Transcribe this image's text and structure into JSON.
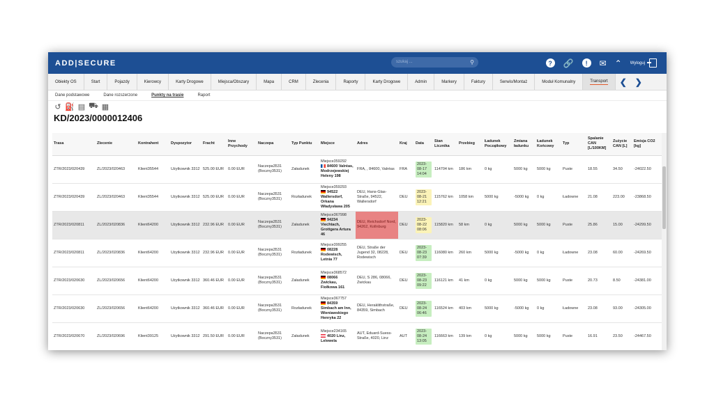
{
  "app": {
    "logo": "ADD|SECURE"
  },
  "search": {
    "placeholder": "szukaj ..."
  },
  "top": {
    "logout_label": "Wyloguj"
  },
  "menu": [
    {
      "label": "Obiekty OS"
    },
    {
      "label": "Start"
    },
    {
      "label": "Pojazdy"
    },
    {
      "label": "Kierowcy"
    },
    {
      "label": "Karty Drogowe"
    },
    {
      "label": "Miejsca/Obszary"
    },
    {
      "label": "Mapa"
    },
    {
      "label": "CRM"
    },
    {
      "label": "Zlecenia"
    },
    {
      "label": "Raporty"
    },
    {
      "label": "Karty Drogowe"
    },
    {
      "label": "Admin"
    },
    {
      "label": "Markery"
    },
    {
      "label": "Faktury"
    },
    {
      "label": "Serwis/Montaż"
    },
    {
      "label": "Moduł Komunalny"
    },
    {
      "label": "Transport"
    }
  ],
  "subtabs": [
    {
      "label": "Dane podstawowe"
    },
    {
      "label": "Dane rozszerzone"
    },
    {
      "label": "Punkty na trasie"
    },
    {
      "label": "Raport"
    }
  ],
  "page": {
    "title": "KD/2023/0000012406"
  },
  "table": {
    "headers": [
      "Trasa",
      "Zlecenie",
      "Kontrahent",
      "Dyspozytor",
      "Fracht",
      "Inne Przychody",
      "Naczepa",
      "Typ Punktu",
      "Miejsce",
      "Adres",
      "Kraj",
      "Data",
      "Stan Licznika",
      "Przebieg",
      "Ładunek Początkowy",
      "Zmiana ładunku",
      "Ładunek Końcowy",
      "Typ",
      "Spalanie CAN [L/100KM]",
      "Zużycie CAN [L]",
      "Emisja CO2 [kg]"
    ],
    "rows": [
      {
        "trasa": "ZTR/2023/020439",
        "zlecenie": "ZL/2023/020463",
        "kontrahent": "Klient35544",
        "dyspozytor": "Użytkownik 3312",
        "fracht": "525.00 EUR",
        "inne": "0.00 EUR",
        "naczepa": "Naczepa3531 (Boczny3531)",
        "typ_punktu": "Załadunek",
        "miejsce_id": "Miejsce359292",
        "miejsce_name": "84600 Valréas, Modrzejewskiej Heleny 198",
        "adres": "FRA, , 84600, Valréas",
        "kraj": "FRA",
        "data": "2023-08-17 14:04",
        "licznik": "114704 km",
        "przebieg": "186 km",
        "lad_pocz": "0 kg",
        "zmiana": "5000 kg",
        "lad_konc": "5000 kg",
        "typ": "Puste",
        "spalanie": "18.55",
        "zuzycie": "34.50",
        "emisja": "-24022.50"
      },
      {
        "trasa": "ZTR/2023/020439",
        "zlecenie": "ZL/2023/020463",
        "kontrahent": "Klient35544",
        "dyspozytor": "Użytkownik 3312",
        "fracht": "525.00 EUR",
        "inne": "0.00 EUR",
        "naczepa": "Naczepa3531 (Boczny3531)",
        "typ_punktu": "Rozładunek",
        "miejsce_id": "Miejsce359293",
        "miejsce_name": "94522 Wallersdorf, Orkana Władysława 205",
        "adres": "DEU, Hans-Glas-Straße, 94522, Wallersdorf",
        "kraj": "DEU",
        "data": "2023-08-21 12:21",
        "licznik": "115762 km",
        "przebieg": "1058 km",
        "lad_pocz": "5000 kg",
        "zmiana": "-5000 kg",
        "lad_konc": "0 kg",
        "typ": "Ładowne",
        "spalanie": "21.08",
        "zuzycie": "223.00",
        "emisja": "-23868.50"
      },
      {
        "trasa": "ZTR/2023/020811",
        "zlecenie": "ZL/2023/020836",
        "kontrahent": "Klient64200",
        "dyspozytor": "Użytkownik 3312",
        "fracht": "232.96 EUR",
        "inne": "0.00 EUR",
        "naczepa": "Naczepa3531 (Boczny3531)",
        "typ_punktu": "Załadunek",
        "miejsce_id": "Miejsce367998",
        "miejsce_name": "94234 Viechtach, Grottgera Artura 46",
        "adres": "DEU, Reichsdorf Nord, 94262, Kollnburg",
        "kraj": "DEU",
        "data": "2023-08-22 08:06",
        "licznik": "115820 km",
        "przebieg": "58 km",
        "lad_pocz": "0 kg",
        "zmiana": "5000 kg",
        "lad_konc": "5000 kg",
        "typ": "Puste",
        "spalanie": "25.86",
        "zuzycie": "15.00",
        "emisja": "-24299.50"
      },
      {
        "trasa": "ZTR/2023/020811",
        "zlecenie": "ZL/2023/020836",
        "kontrahent": "Klient64200",
        "dyspozytor": "Użytkownik 3312",
        "fracht": "232.96 EUR",
        "inne": "0.00 EUR",
        "naczepa": "Naczepa3531 (Boczny3531)",
        "typ_punktu": "Rozładunek",
        "miejsce_id": "Miejsce399255",
        "miejsce_name": "08228 Rodewisch, Letnia 77",
        "adres": "DEU, Straße der Jugend 32, 08228, Rodewisch",
        "kraj": "DEU",
        "data": "2023-08-23 07:39",
        "licznik": "116080 km",
        "przebieg": "260 km",
        "lad_pocz": "5000 kg",
        "zmiana": "-5000 kg",
        "lad_konc": "0 kg",
        "typ": "Ładowne",
        "spalanie": "23.08",
        "zuzycie": "60.00",
        "emisja": "-24269.50"
      },
      {
        "trasa": "ZTR/2023/020630",
        "zlecenie": "ZL/2023/020656",
        "kontrahent": "Klient64200",
        "dyspozytor": "Użytkownik 3312",
        "fracht": "360.46 EUR",
        "inne": "0.00 EUR",
        "naczepa": "Naczepa3531 (Boczny3531)",
        "typ_punktu": "Załadunek",
        "miejsce_id": "Miejsce368572",
        "miejsce_name": "08066 Zwickau, Fiołkowa 161",
        "adres": "DEU, S 286, 08066, Zwickau",
        "kraj": "DEU",
        "data": "2023-08-23 09:22",
        "licznik": "116121 km",
        "przebieg": "41 km",
        "lad_pocz": "0 kg",
        "zmiana": "5000 kg",
        "lad_konc": "5000 kg",
        "typ": "Puste",
        "spalanie": "20.73",
        "zuzycie": "8.50",
        "emisja": "-24381.00"
      },
      {
        "trasa": "ZTR/2023/020630",
        "zlecenie": "ZL/2023/020656",
        "kontrahent": "Klient64200",
        "dyspozytor": "Użytkownik 3312",
        "fracht": "360.46 EUR",
        "inne": "0.00 EUR",
        "naczepa": "Naczepa3531 (Boczny3531)",
        "typ_punktu": "Rozładunek",
        "miejsce_id": "Miejsce367757",
        "miejsce_name": "84359 Simbach am Inn, Wieniawskiego Henryka 22",
        "adres": "DEU, Heraklithstraße, 84359, Simbach",
        "kraj": "DEU",
        "data": "2023-08-24 06:46",
        "licznik": "116524 km",
        "przebieg": "403 km",
        "lad_pocz": "5000 kg",
        "zmiana": "-5000 kg",
        "lad_konc": "0 kg",
        "typ": "Ładowne",
        "spalanie": "23.08",
        "zuzycie": "93.00",
        "emisja": "-24305.00"
      },
      {
        "trasa": "ZTR/2023/020670",
        "zlecenie": "ZL/2023/020696",
        "kontrahent": "Klient39125",
        "dyspozytor": "Użytkownik 3312",
        "fracht": "291.50 EUR",
        "inne": "0.00 EUR",
        "naczepa": "Naczepa3531 (Boczny3531)",
        "typ_punktu": "Załadunek",
        "miejsce_id": "Miejsce234165",
        "miejsce_name": "4020 Linz, Lelewela",
        "adres": "AUT, Eduard-Suess-Straße, 4020, Linz",
        "kraj": "AUT",
        "data": "2023-08-24 13:05",
        "licznik": "116663 km",
        "przebieg": "139 km",
        "lad_pocz": "0 kg",
        "zmiana": "5000 kg",
        "lad_konc": "5000 kg",
        "typ": "Puste",
        "spalanie": "16.91",
        "zuzycie": "23.50",
        "emisja": "-24467.50"
      }
    ]
  },
  "colors": {
    "topbar": "#1d4f94",
    "highlight_address": "#e88383",
    "date_green": "#c7eec0",
    "date_yellow": "#fbf3b8",
    "active_tab_underline": "#e05a2b"
  }
}
